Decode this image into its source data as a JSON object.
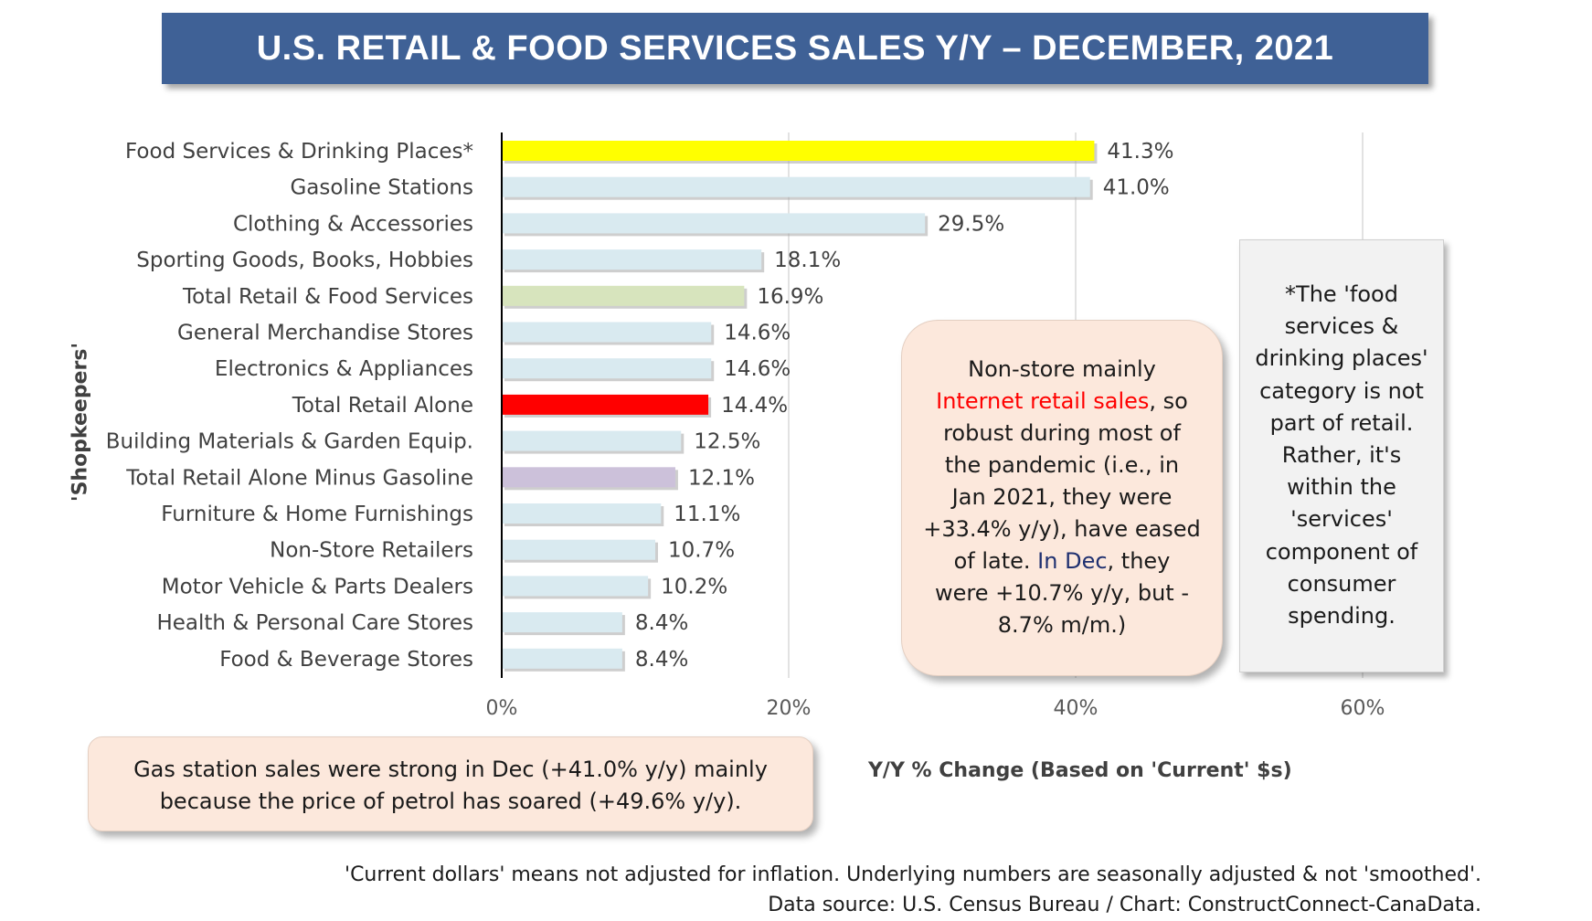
{
  "title": "U.S. RETAIL & FOOD SERVICES SALES Y/Y – DECEMBER, 2021",
  "chart_data": {
    "type": "bar",
    "orientation": "horizontal",
    "categories": [
      "Food Services & Drinking Places*",
      "Gasoline Stations",
      "Clothing & Accessories",
      "Sporting Goods, Books, Hobbies",
      "Total Retail & Food Services",
      "General Merchandise Stores",
      "Electronics & Appliances",
      "Total Retail Alone",
      "Building Materials & Garden Equip.",
      "Total Retail Alone Minus Gasoline",
      "Furniture & Home Furnishings",
      "Non-Store Retailers",
      "Motor Vehicle & Parts Dealers",
      "Health & Personal Care Stores",
      "Food & Beverage Stores"
    ],
    "values": [
      41.3,
      41.0,
      29.5,
      18.1,
      16.9,
      14.6,
      14.6,
      14.4,
      12.5,
      12.1,
      11.1,
      10.7,
      10.2,
      8.4,
      8.4
    ],
    "value_labels": [
      "41.3%",
      "41.0%",
      "29.5%",
      "18.1%",
      "16.9%",
      "14.6%",
      "14.6%",
      "14.4%",
      "12.5%",
      "12.1%",
      "11.1%",
      "10.7%",
      "10.2%",
      "8.4%",
      "8.4%"
    ],
    "bar_colors": [
      "#ffff00",
      "#d9eaf0",
      "#d9eaf0",
      "#d9eaf0",
      "#d7e4bd",
      "#d9eaf0",
      "#d9eaf0",
      "#ff0000",
      "#d9eaf0",
      "#ccc1da",
      "#d9eaf0",
      "#d9eaf0",
      "#d9eaf0",
      "#d9eaf0",
      "#d9eaf0"
    ],
    "xlim": [
      0,
      60
    ],
    "xticks": [
      0,
      20,
      40,
      60
    ],
    "xtick_labels": [
      "0%",
      "20%",
      "40%",
      "60%"
    ],
    "xlabel": "Y/Y % Change (Based  on 'Current' $s)",
    "ylabel": "'Shopkeepers'",
    "grid": "vertical"
  },
  "callouts": {
    "internet_lines": [
      [
        {
          "text": "Non-store mainly",
          "color": "default"
        }
      ],
      [
        {
          "text": "Internet retail sales",
          "color": "red"
        },
        {
          "text": ",  so",
          "color": "default"
        }
      ],
      [
        {
          "text": "robust during most of",
          "color": "default"
        }
      ],
      [
        {
          "text": "the pandemic (i.e., in",
          "color": "default"
        }
      ],
      [
        {
          "text": "Jan 2021, they were",
          "color": "default"
        }
      ],
      [
        {
          "text": "+33.4% y/y), have eased",
          "color": "default"
        }
      ],
      [
        {
          "text": "of late. ",
          "color": "default"
        },
        {
          "text": "In Dec",
          "color": "navy"
        },
        {
          "text": ", they",
          "color": "default"
        }
      ],
      [
        {
          "text": "were +10.7% y/y, but -",
          "color": "default"
        }
      ],
      [
        {
          "text": "8.7% m/m.)",
          "color": "default"
        }
      ]
    ],
    "gas_lines": [
      "Gas station sales were strong in Dec (+41.0% y/y) mainly",
      "because the price of petrol has soared (+49.6% y/y)."
    ],
    "note_lines": [
      "*The 'food",
      "services &",
      "drinking places'",
      "category is not",
      "part of retail.",
      "Rather, it's",
      "within the",
      "'services'",
      "component of",
      "consumer",
      "spending."
    ]
  },
  "footnotes": {
    "line1": "'Current dollars' means not adjusted for inflation. Underlying numbers are seasonally adjusted & not 'smoothed'.",
    "line2": "Data source: U.S. Census Bureau / Chart: ConstructConnect-CanaData."
  }
}
